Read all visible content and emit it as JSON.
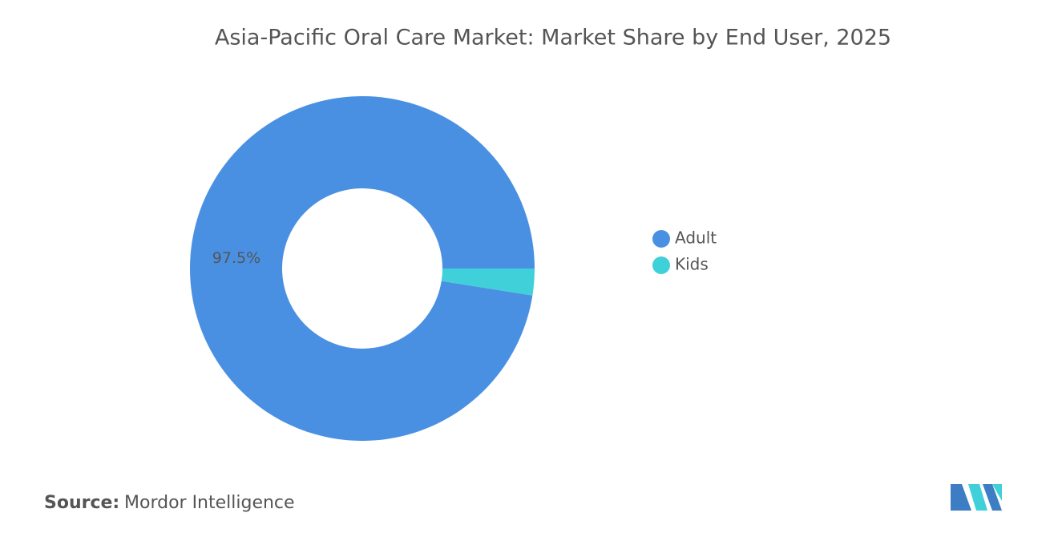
{
  "chart_data": {
    "type": "donut",
    "title": "Asia-Pacific Oral Care Market: Market Share by End User, 2025",
    "categories": [
      "Adult",
      "Kids"
    ],
    "values": [
      97.5,
      2.5
    ],
    "value_labels": [
      "97.5%",
      null
    ],
    "colors": [
      "#4a90e2",
      "#3fd0d9"
    ],
    "legend": "right",
    "source_label": "Source:",
    "source": "Mordor Intelligence"
  }
}
